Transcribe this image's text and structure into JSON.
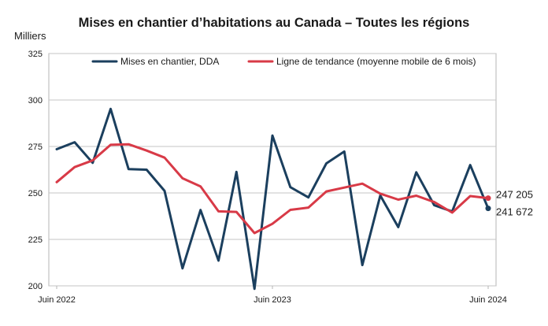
{
  "chart_data": {
    "type": "line",
    "title": "Mises en chantier d’habitations au Canada – Toutes les régions",
    "ylabel": "Milliers",
    "xlabel": "",
    "ylim": [
      200,
      325
    ],
    "yticks": [
      "200",
      "225",
      "250",
      "275",
      "300",
      "325"
    ],
    "x_tick_labels": [
      "Juin 2022",
      "Juin 2023",
      "Juin 2024"
    ],
    "grid": true,
    "legend_position": "top",
    "series": [
      {
        "name": "Mises en chantier, DDA",
        "color": "#1b3f5e",
        "values": [
          273.5,
          277.3,
          266.2,
          295.2,
          262.8,
          262.5,
          251.1,
          209.4,
          240.8,
          213.6,
          261.3,
          198.4,
          280.9,
          253.1,
          247.6,
          265.9,
          272.3,
          211.2,
          248.6,
          231.6,
          261.1,
          243.4,
          240.0,
          265.0,
          241.672
        ]
      },
      {
        "name": "Ligne de tendance (moyenne mobile de 6 mois)",
        "color": "#d83a47",
        "values": [
          255.8,
          263.9,
          267.5,
          275.9,
          276.2,
          272.8,
          269.0,
          257.9,
          253.5,
          240.1,
          239.8,
          228.4,
          233.4,
          240.9,
          242.1,
          250.8,
          252.9,
          255.0,
          249.6,
          246.4,
          248.5,
          245.1,
          239.4,
          248.3,
          247.205
        ]
      }
    ],
    "end_labels": [
      "247 205",
      "241 672"
    ]
  }
}
